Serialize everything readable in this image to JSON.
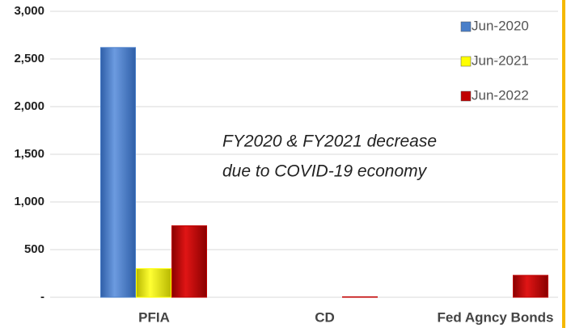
{
  "chart_data": {
    "type": "bar",
    "categories": [
      "PFIA",
      "CD",
      "Fed Agncy Bonds"
    ],
    "series": [
      {
        "name": "Jun-2020",
        "color": "#4a7fc9",
        "values": [
          2620,
          0,
          0
        ]
      },
      {
        "name": "Jun-2021",
        "color": "#ffff00",
        "values": [
          300,
          0,
          0
        ]
      },
      {
        "name": "Jun-2022",
        "color": "#c00000",
        "values": [
          750,
          5,
          230
        ]
      }
    ],
    "ylim": [
      0,
      3000
    ],
    "yticks": [
      {
        "value": 0,
        "label": "-"
      },
      500,
      {
        "value": 1000,
        "label": "1,000"
      },
      {
        "value": 1500,
        "label": "1,500"
      },
      {
        "value": 2000,
        "label": "2,000"
      },
      {
        "value": 2500,
        "label": "2,500"
      },
      {
        "value": 3000,
        "label": "3,000"
      }
    ],
    "grid": true,
    "legend": "upper right",
    "annotation": [
      "FY2020 & FY2021 decrease",
      "due to COVID-19 economy"
    ]
  }
}
